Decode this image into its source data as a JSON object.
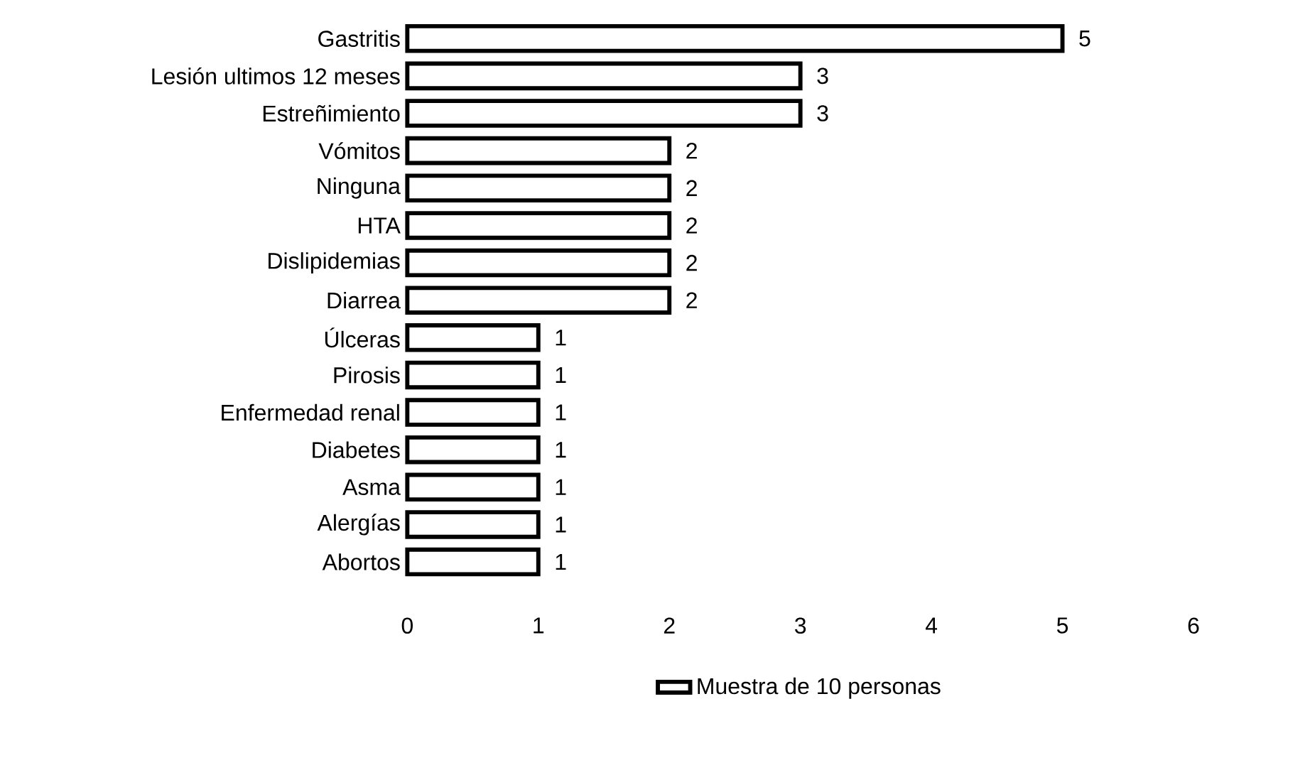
{
  "chart_data": {
    "type": "bar",
    "orientation": "horizontal",
    "categories": [
      "Gastritis",
      "Lesión ultimos 12 meses",
      "Estreñimiento",
      "Vómitos",
      "Ninguna",
      "HTA",
      "Dislipidemias",
      "Diarrea",
      "Úlceras",
      "Pirosis",
      "Enfermedad renal",
      "Diabetes",
      "Asma",
      "Alergías",
      "Abortos"
    ],
    "series": [
      {
        "name": "Muestra de 10 personas",
        "color": "#ffffff",
        "values": [
          5,
          3,
          3,
          2,
          2,
          2,
          2,
          2,
          1,
          1,
          1,
          1,
          1,
          1,
          1
        ]
      }
    ],
    "xlim": [
      0,
      6
    ],
    "xticks": [
      0,
      1,
      2,
      3,
      4,
      5,
      6
    ],
    "data_labels": true,
    "legend": "bottom",
    "grid": false
  }
}
